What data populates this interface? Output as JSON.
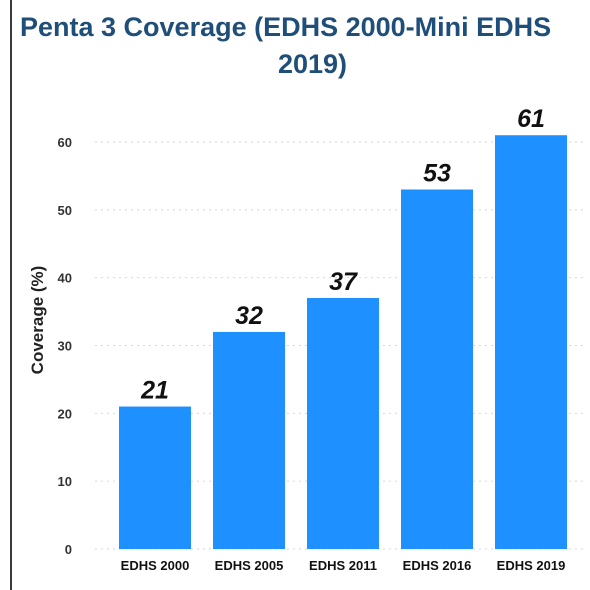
{
  "chart_data": {
    "type": "bar",
    "title_line1": "Penta 3 Coverage (EDHS 2000-Mini EDHS",
    "title_line2": "2019)",
    "ylabel": "Coverage (%)",
    "xlabel": "",
    "categories": [
      "EDHS 2000",
      "EDHS 2005",
      "EDHS 2011",
      "EDHS 2016",
      "EDHS 2019"
    ],
    "values": [
      21,
      32,
      37,
      53,
      61
    ],
    "ylim": [
      0,
      60
    ],
    "yticks": [
      0,
      10,
      20,
      30,
      40,
      50,
      60
    ],
    "grid": true,
    "bar_color": "#1e90ff",
    "title_color": "#1f4e79"
  }
}
